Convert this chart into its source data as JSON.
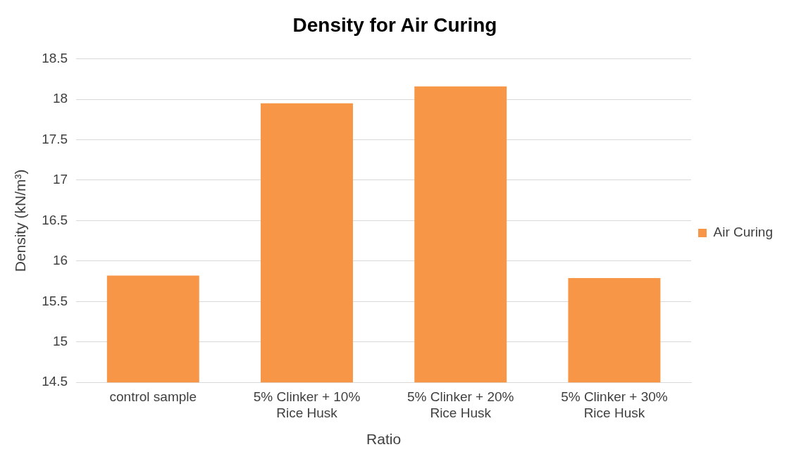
{
  "chart_data": {
    "type": "bar",
    "title": "Density for Air Curing",
    "xlabel": "Ratio",
    "ylabel": "Density (kN/m³)",
    "categories": [
      "control sample",
      "5% Clinker + 10% Rice Husk",
      "5% Clinker + 20% Rice Husk",
      "5% Clinker + 30% Rice Husk"
    ],
    "series": [
      {
        "name": "Air Curing",
        "color": "#f79646",
        "values": [
          15.82,
          17.95,
          18.16,
          15.79
        ]
      }
    ],
    "ylim": [
      14.5,
      18.5
    ],
    "yticks": [
      14.5,
      15,
      15.5,
      16,
      16.5,
      17,
      17.5,
      18,
      18.5
    ],
    "grid": "y",
    "legend": "right"
  }
}
